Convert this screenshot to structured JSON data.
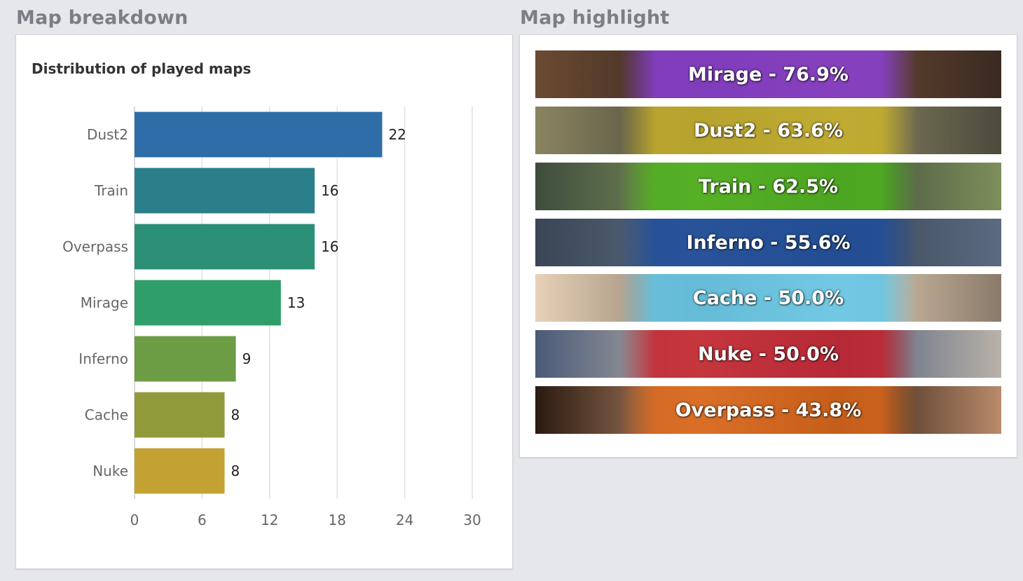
{
  "breakdown": {
    "title": "Map breakdown"
  },
  "highlight": {
    "title": "Map highlight",
    "banners": [
      {
        "label": "Mirage - 76.9%",
        "color": "#8b3fd6",
        "bg1": "#6b4a32",
        "bg2": "#3a2a22"
      },
      {
        "label": "Dust2 - 63.6%",
        "color": "#c9b22a",
        "bg1": "#8a8460",
        "bg2": "#4b4a3c"
      },
      {
        "label": "Train - 62.5%",
        "color": "#4fb51c",
        "bg1": "#3e4c3c",
        "bg2": "#7d8f5a"
      },
      {
        "label": "Inferno - 55.6%",
        "color": "#1f4f9e",
        "bg1": "#3a4656",
        "bg2": "#5b6a80"
      },
      {
        "label": "Cache - 50.0%",
        "color": "#5ec7ea",
        "bg1": "#e7d2b8",
        "bg2": "#8a7a6a"
      },
      {
        "label": "Nuke - 50.0%",
        "color": "#c8202a",
        "bg1": "#4a5a78",
        "bg2": "#b9b2a8"
      },
      {
        "label": "Overpass - 43.8%",
        "color": "#e06a1c",
        "bg1": "#2a1a10",
        "bg2": "#b98a6a"
      }
    ]
  },
  "chart_data": {
    "type": "bar",
    "orientation": "horizontal",
    "title": "Distribution of played maps",
    "categories": [
      "Dust2",
      "Train",
      "Overpass",
      "Mirage",
      "Inferno",
      "Cache",
      "Nuke"
    ],
    "values": [
      22,
      16,
      16,
      13,
      9,
      8,
      8
    ],
    "colors": [
      "#2f6da8",
      "#2a7f8b",
      "#2b8f76",
      "#2f9e69",
      "#6c9c43",
      "#919a3a",
      "#c3a233"
    ],
    "xlim": [
      0,
      30
    ],
    "xticks": [
      "0",
      "6",
      "12",
      "18",
      "24",
      "30"
    ],
    "grid": true
  }
}
